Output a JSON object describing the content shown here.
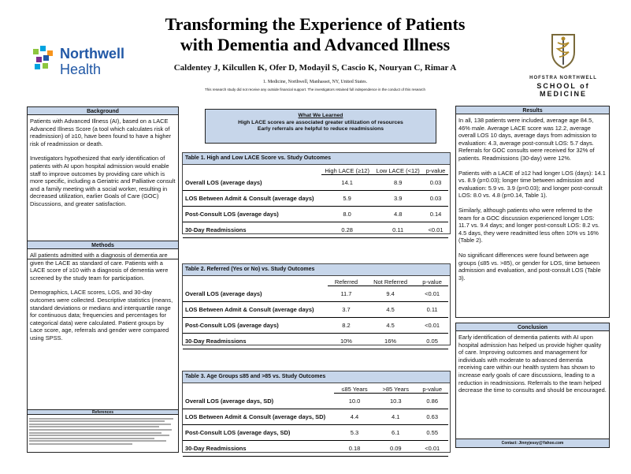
{
  "header": {
    "title_line1": "Transforming the Experience of Patients",
    "title_line2": "with Dementia and Advanced Illness",
    "authors": "Caldentey J, Kilcullen K, Ofer D, Modayil S, Cascio K, Nouryan C, Rimar A",
    "affiliation": "1. Medicine, Northwell, Manhasset, NY, United States.",
    "funding": "This research study did not receive any outside financial support. The investigators retained full independence in the conduct of this research"
  },
  "logos": {
    "northwell_line1": "Northwell",
    "northwell_line2": "Health",
    "hofstra_line1": "HOFSTRA NORTHWELL",
    "hofstra_line2": "SCHOOL of MEDICINE",
    "brand_blue": "#2158a6",
    "accent_colors": [
      "#8dc63f",
      "#00a3e0",
      "#f7941d",
      "#7b2d8e"
    ]
  },
  "background": {
    "heading": "Background",
    "p1": "Patients with Advanced Illness (AI), based on a LACE Advanced Illness Score (a tool which calculates risk of readmission) of ≥10, have been found to have a higher risk of readmission or death.",
    "p2": "Investigators hypothesized that early identification of patients with AI upon hospital admission would enable staff to improve outcomes by providing care which is more specific, including a Geriatric and Palliative consult and a family meeting with a social worker, resulting in decreased utilization, earlier Goals of Care (GOC) Discussions, and greater satisfaction."
  },
  "methods": {
    "heading": "Methods",
    "p1": "All patients admitted with a diagnosis of dementia are given the LACE as standard of care. Patients with a LACE score of ≥10 with a diagnosis of dementia were screened by the study team for participation.",
    "p2": "Demographics, LACE scores, LOS, and 30-day outcomes were collected. Descriptive statistics (means, standard deviations or medians and interquartile range for continuous data; frequencies and percentages for categorical data) were calculated. Patient groups by Lace score, age, referrals and gender were compared using SPSS."
  },
  "references": {
    "heading": "References"
  },
  "learned": {
    "heading": "What We Learned",
    "line1": "High LACE scores are associated greater utilization of resources",
    "line2": "Early referrals are helpful to reduce readmissions"
  },
  "table1": {
    "title": "Table 1. High and Low LACE Score vs. Study Outcomes",
    "headers": [
      "High LACE (≥12)",
      "Low LACE (<12)",
      "p-value"
    ],
    "rows": [
      {
        "label": "Overall LOS (average days)",
        "a": "14.1",
        "b": "8.9",
        "p": "0.03"
      },
      {
        "label": "LOS Between Admit & Consult (average days)",
        "a": "5.9",
        "b": "3.9",
        "p": "0.03"
      },
      {
        "label": "Post-Consult LOS (average days)",
        "a": "8.0",
        "b": "4.8",
        "p": "0.14"
      },
      {
        "label": "30-Day Readmissions",
        "a": "0.28",
        "b": "0.11",
        "p": "<0.01"
      }
    ]
  },
  "table2": {
    "title": "Table 2. Referred (Yes or No) vs. Study Outcomes",
    "headers": [
      "Referred",
      "Not Referred",
      "p-value"
    ],
    "rows": [
      {
        "label": "Overall LOS (average days)",
        "a": "11.7",
        "b": "9.4",
        "p": "<0.01"
      },
      {
        "label": "LOS Between Admit & Consult (average days)",
        "a": "3.7",
        "b": "4.5",
        "p": "0.11"
      },
      {
        "label": "Post-Consult LOS (average days)",
        "a": "8.2",
        "b": "4.5",
        "p": "<0.01"
      },
      {
        "label": "30-Day Readmissions",
        "a": "10%",
        "b": "16%",
        "p": "0.05"
      }
    ]
  },
  "table3": {
    "title": "Table 3. Age Groups ≤85 and >85 vs. Study Outcomes",
    "headers": [
      "≤85 Years",
      ">85 Years",
      "p-value"
    ],
    "rows": [
      {
        "label": "Overall LOS (average days, SD)",
        "a": "10.0",
        "b": "10.3",
        "p": "0.86"
      },
      {
        "label": "LOS Between Admit & Consult (average days, SD)",
        "a": "4.4",
        "b": "4.1",
        "p": "0.63"
      },
      {
        "label": "Post-Consult LOS (average days, SD)",
        "a": "5.3",
        "b": "6.1",
        "p": "0.55"
      },
      {
        "label": "30-Day Readmissions",
        "a": "0.18",
        "b": "0.09",
        "p": "<0.01"
      }
    ]
  },
  "results": {
    "heading": "Results",
    "p1": "In all, 138 patients were included, average age 84.5, 46% male. Average LACE score was 12.2, average overall LOS 10 days, average days from admission to evaluation: 4.3, average post-consult LOS: 5.7 days. Referrals for GOC consults were received for 32% of patients. Readmissions (30-day) were 12%.",
    "p2": "Patients with a LACE of ≥12 had longer LOS (days): 14.1 vs. 8.9 (p=0.03); longer time between admission and evaluation: 5.9 vs. 3.9 (p=0.03); and longer post-consult LOS: 8.0 vs. 4.8 (p=0.14, Table 1).",
    "p3": "Similarly, although patients who were referred to the team for a GOC discussion experienced longer LOS: 11.7 vs. 9.4 days; and longer post-consult LOS: 8.2 vs. 4.5 days, they were readmitted less often 10% vs 16% (Table 2).",
    "p4": "No significant differences were found between age groups (≤85 vs. >85), or gender for LOS, time between admission and evaluation, and post-consult LOS (Table 3)."
  },
  "conclusion": {
    "heading": "Conclusion",
    "p1": "Early identification of dementia patients with AI upon hospital admission has helped us provide higher quality of care. Improving outcomes and management for individuals with moderate to advanced dementia receiving care within our health system has shown to increase early goals of care discussions, leading to a reduction in readmissions. Referrals to the team helped decrease the time to consults and should be encouraged."
  },
  "contact": "Contact: Jinnyjessy@Yahoo.com"
}
